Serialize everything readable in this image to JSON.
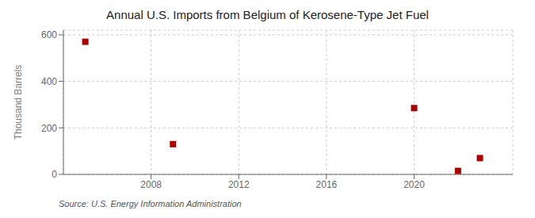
{
  "chart_data": {
    "type": "scatter",
    "title": "Annual U.S. Imports from Belgium of Kerosene-Type Jet Fuel",
    "ylabel": "Thousand Barrels",
    "annotations": [
      "Source: U.S. Energy Information Administration"
    ],
    "x": [
      2005,
      2009,
      2020,
      2022,
      2023
    ],
    "values": [
      570,
      130,
      285,
      15,
      70
    ],
    "color": "#aa0000",
    "marker": "square",
    "xlim": [
      2004,
      2024.5
    ],
    "ylim": [
      0,
      620
    ],
    "xticks": [
      2008,
      2012,
      2016,
      2020
    ],
    "yticks": [
      0,
      200,
      400,
      600
    ],
    "grid": true
  }
}
